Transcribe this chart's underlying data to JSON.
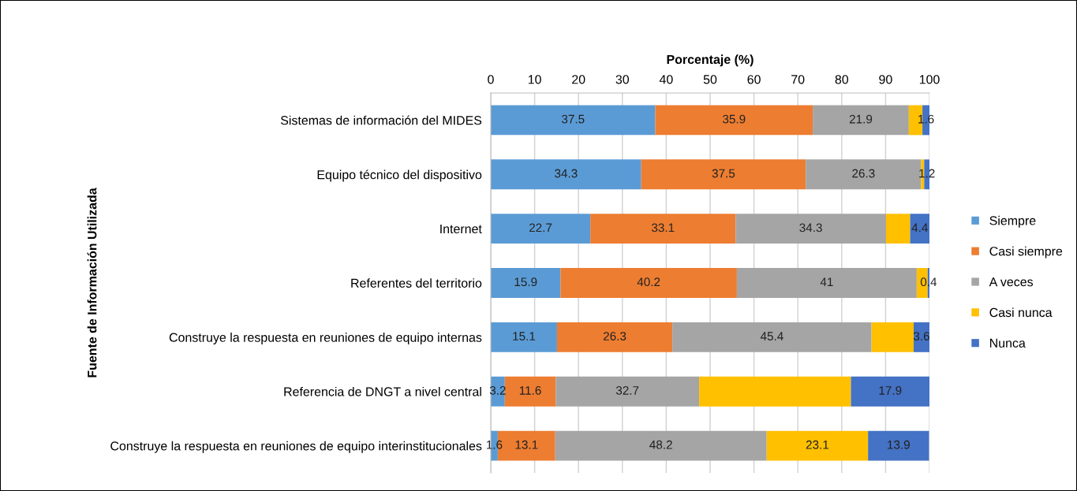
{
  "chart_data": {
    "type": "bar",
    "orientation": "horizontal",
    "stacked": true,
    "xlabel": "Porcentaje (%)",
    "ylabel": "Fuente de Información Utilizada",
    "categories": [
      "Sistemas de información del MIDES",
      "Equipo técnico del dispositivo",
      "Internet",
      "Referentes del territorio",
      "Construye la respuesta en reuniones de equipo internas",
      "Referencia de DNGT a nivel central",
      "Construye la respuesta en reuniones de equipo interinstitucionales"
    ],
    "series": [
      {
        "name": "Siempre",
        "color": "#5b9bd5",
        "values": [
          37.5,
          34.3,
          22.7,
          15.9,
          15.1,
          3.2,
          1.6
        ],
        "value_labels": [
          "37.5",
          "34.3",
          "22.7",
          "15.9",
          "15.1",
          "3.2",
          "1.6"
        ]
      },
      {
        "name": "Casi siempre",
        "color": "#ed7d31",
        "values": [
          35.9,
          37.5,
          33.1,
          40.2,
          26.3,
          11.6,
          13.1
        ],
        "value_labels": [
          "35.9",
          "37.5",
          "33.1",
          "40.2",
          "26.3",
          "11.6",
          "13.1"
        ]
      },
      {
        "name": "A veces",
        "color": "#a5a5a5",
        "values": [
          21.9,
          26.3,
          34.3,
          41,
          45.4,
          32.7,
          48.2
        ],
        "value_labels": [
          "21.9",
          "26.3",
          "34.3",
          "41",
          "45.4",
          "32.7",
          "48.2"
        ]
      },
      {
        "name": "Casi nunca",
        "color": "#ffc000",
        "values": [
          3.1,
          0.7,
          5.5,
          2.5,
          9.6,
          34.6,
          23.1
        ],
        "value_labels": [
          null,
          null,
          null,
          null,
          null,
          null,
          "23.1"
        ]
      },
      {
        "name": "Nunca",
        "color": "#4472c4",
        "values": [
          1.6,
          1.2,
          4.4,
          0.4,
          3.6,
          17.9,
          13.9
        ],
        "value_labels": [
          "1.6",
          "1.2",
          "4.4",
          "0.4",
          "3.6",
          "17.9",
          "13.9"
        ]
      }
    ],
    "xlim": [
      0,
      100
    ],
    "xticks": [
      0,
      10,
      20,
      30,
      40,
      50,
      60,
      70,
      80,
      90,
      100
    ],
    "grid": "x",
    "legend": "right"
  }
}
